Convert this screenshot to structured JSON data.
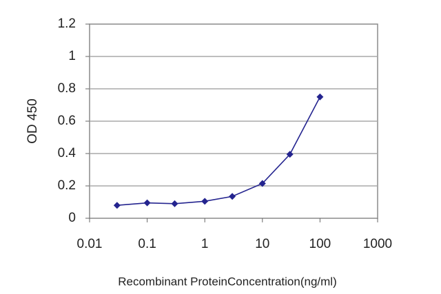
{
  "chart_data": {
    "type": "line",
    "x_label": "Recombinant ProteinConcentration(ng/ml)",
    "y_label": "OD 450",
    "x": [
      0.03,
      0.1,
      0.3,
      1,
      3,
      10,
      30,
      100
    ],
    "series": [
      {
        "color": "#24248f",
        "values": [
          0.08,
          0.095,
          0.09,
          0.105,
          0.135,
          0.215,
          0.395,
          0.75
        ]
      }
    ],
    "xlim": [
      0.01,
      1000
    ],
    "xticks": [
      0.01,
      0.1,
      1,
      10,
      100,
      1000
    ],
    "xscale": "log",
    "ylim": [
      0,
      1.2
    ],
    "yticks": [
      0,
      0.2,
      0.4,
      0.6,
      0.8,
      1,
      1.2
    ],
    "grid": true
  }
}
